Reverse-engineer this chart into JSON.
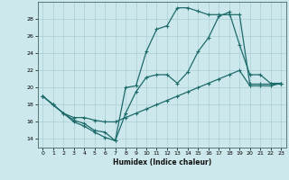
{
  "xlabel": "Humidex (Indice chaleur)",
  "bg_color": "#cce8ec",
  "grid_color": "#aacdd4",
  "line_color": "#1e6b6b",
  "xlim": [
    -0.5,
    23.5
  ],
  "ylim": [
    13.0,
    30.0
  ],
  "xticks": [
    0,
    1,
    2,
    3,
    4,
    5,
    6,
    7,
    8,
    9,
    10,
    11,
    12,
    13,
    14,
    15,
    16,
    17,
    18,
    19,
    20,
    21,
    22,
    23
  ],
  "yticks": [
    14,
    16,
    18,
    20,
    22,
    24,
    26,
    28
  ],
  "line1_x": [
    0,
    1,
    2,
    3,
    4,
    5,
    6,
    7,
    8,
    9,
    10,
    11,
    12,
    13,
    14,
    15,
    16,
    17,
    18,
    19,
    20,
    21,
    22,
    23
  ],
  "line1_y": [
    19,
    18,
    17,
    16,
    15.5,
    14.8,
    14.2,
    13.8,
    20.0,
    20.2,
    24.2,
    26.8,
    27.2,
    29.3,
    29.3,
    28.9,
    28.5,
    28.5,
    28.5,
    28.5,
    20.4,
    20.4,
    20.4,
    20.4
  ],
  "line2_x": [
    0,
    1,
    2,
    3,
    4,
    5,
    6,
    7,
    8,
    9,
    10,
    11,
    12,
    13,
    14,
    15,
    16,
    17,
    18,
    19,
    20,
    21,
    22,
    23
  ],
  "line2_y": [
    19,
    18,
    17,
    16.2,
    15.8,
    15.0,
    14.8,
    13.8,
    17.0,
    19.5,
    21.2,
    21.5,
    21.5,
    20.5,
    21.8,
    24.2,
    25.8,
    28.3,
    28.8,
    25.0,
    21.5,
    21.5,
    20.5,
    20.5
  ],
  "line3_x": [
    0,
    1,
    2,
    3,
    4,
    5,
    6,
    7,
    8,
    9,
    10,
    11,
    12,
    13,
    14,
    15,
    16,
    17,
    18,
    19,
    20,
    21,
    22,
    23
  ],
  "line3_y": [
    19.0,
    18.0,
    17.0,
    16.5,
    16.5,
    16.2,
    16.0,
    16.0,
    16.5,
    17.0,
    17.5,
    18.0,
    18.5,
    19.0,
    19.5,
    20.0,
    20.5,
    21.0,
    21.5,
    22.0,
    20.2,
    20.2,
    20.2,
    20.5
  ]
}
